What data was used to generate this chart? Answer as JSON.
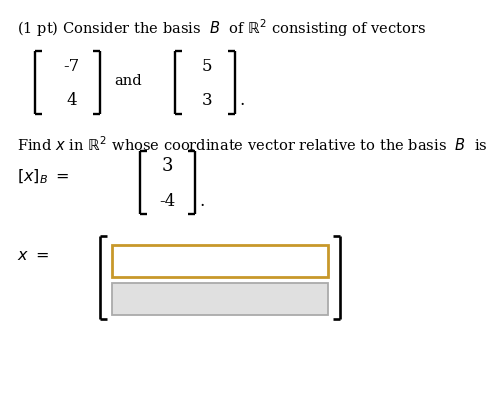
{
  "title_text": "(1 pt) Consider the basis  $B$  of $\\mathbb{R}^2$ consisting of vectors",
  "find_text": "Find $x$ in $\\mathbb{R}^2$ whose coordinate vector relative to the basis  $B$  is",
  "vec1_top": "-7",
  "vec1_bot": "4",
  "vec2_top": "5",
  "vec2_bot": "3",
  "coord_top": "3",
  "coord_bot": "-4",
  "x_label": "$x\\ =$",
  "xB_label": "$[x]_B\\ =$",
  "and_text": "and",
  "background": "#ffffff",
  "text_color": "#000000",
  "bracket_color": "#000000",
  "box1_edgecolor": "#c8982a",
  "box1_facecolor": "#ffffff",
  "box2_edgecolor": "#aaaaaa",
  "box2_facecolor": "#e0e0e0"
}
